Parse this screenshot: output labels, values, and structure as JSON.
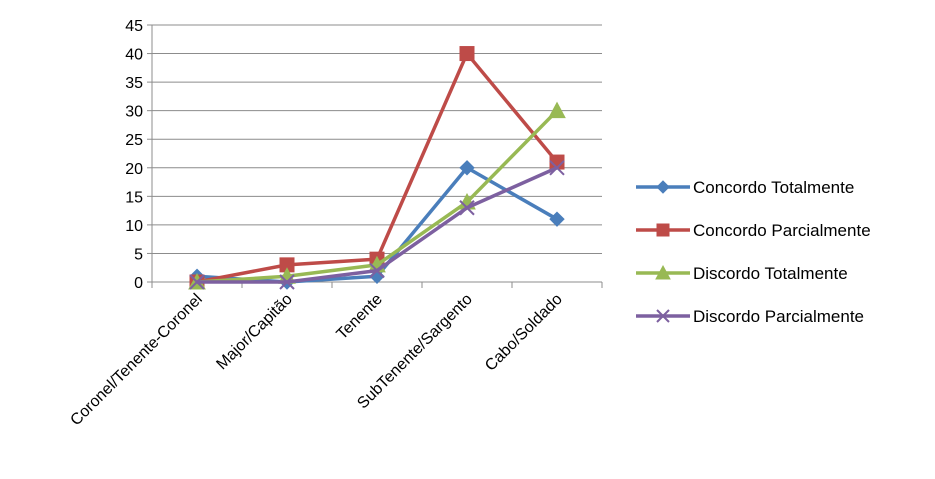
{
  "chart_data": {
    "type": "line",
    "categories": [
      "Coronel/Tenente-Coronel",
      "Major/Capitão",
      "Tenente",
      "SubTenente/Sargento",
      "Cabo/Soldado"
    ],
    "ylim": [
      0,
      45
    ],
    "yticks": [
      0,
      5,
      10,
      15,
      20,
      25,
      30,
      35,
      40,
      45
    ],
    "grid": true,
    "legend_position": "right",
    "series": [
      {
        "name": "Concordo Totalmente",
        "values": [
          1,
          0,
          1,
          20,
          11
        ],
        "color": "#4a7ebb",
        "marker": "diamond"
      },
      {
        "name": "Concordo Parcialmente",
        "values": [
          0,
          3,
          4,
          40,
          21
        ],
        "color": "#be4b48",
        "marker": "square"
      },
      {
        "name": "Discordo Totalmente",
        "values": [
          0,
          1,
          3,
          14,
          30
        ],
        "color": "#98b954",
        "marker": "triangle"
      },
      {
        "name": "Discordo Parcialmente",
        "values": [
          0,
          0,
          2,
          13,
          20
        ],
        "color": "#7d60a0",
        "marker": "x"
      }
    ]
  }
}
